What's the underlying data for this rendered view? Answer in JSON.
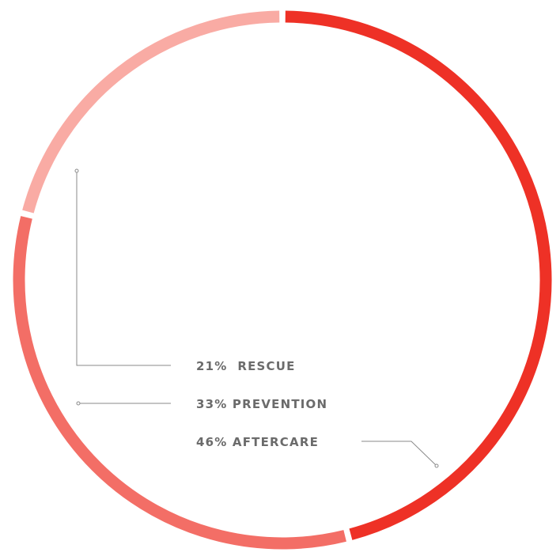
{
  "chart_data": {
    "type": "pie",
    "categories": [
      "RESCUE",
      "PREVENTION",
      "AFTERCARE"
    ],
    "values": [
      21,
      33,
      46
    ],
    "labels": [
      "21%  RESCUE",
      "33% PREVENTION",
      "46% AFTERCARE"
    ],
    "colors": [
      "#f9aba4",
      "#f36e66",
      "#ee3126"
    ],
    "legend": "none"
  }
}
